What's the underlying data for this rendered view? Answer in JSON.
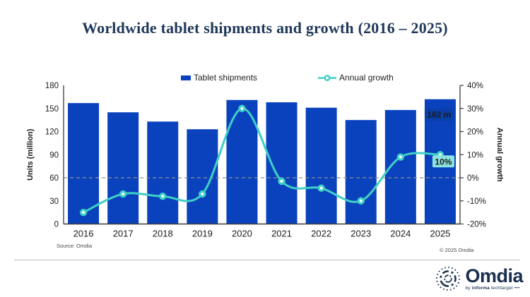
{
  "title": "Worldwide tablet shipments and growth (2016 – 2025)",
  "legend": [
    {
      "label": "Tablet shipments",
      "swatch": "blue-bar"
    },
    {
      "label": "Annual growth",
      "swatch": "teal-line-marker"
    }
  ],
  "chart_data": {
    "type": "bar+line combo",
    "categories": [
      "2016",
      "2017",
      "2018",
      "2019",
      "2020",
      "2021",
      "2022",
      "2023",
      "2024",
      "2025"
    ],
    "series": [
      {
        "name": "Tablet shipments",
        "type": "bar",
        "axis": "left",
        "unit": "million units",
        "values": [
          157,
          145,
          133,
          123,
          161,
          158,
          151,
          135,
          148,
          162
        ]
      },
      {
        "name": "Annual growth",
        "type": "line",
        "axis": "right",
        "unit": "percent",
        "values": [
          -15,
          -7,
          -8,
          -7,
          30,
          -1.5,
          -4.5,
          -10,
          9,
          10
        ]
      }
    ],
    "left_axis": {
      "label": "Units (million)",
      "min": 0,
      "max": 180,
      "ticks": [
        0,
        30,
        60,
        90,
        120,
        150,
        180
      ]
    },
    "right_axis": {
      "label": "Annual growth",
      "min": -20,
      "max": 40,
      "ticks": [
        -20,
        -10,
        0,
        10,
        20,
        30,
        40
      ],
      "tick_suffix": "%"
    },
    "reference_line": {
      "left_value": 60,
      "right_value": 0,
      "style": "dashed"
    },
    "annotations": [
      {
        "target": "2025-bar",
        "text": "162 m"
      },
      {
        "target": "2025-growth-point",
        "text": "10%"
      }
    ],
    "grid": "off",
    "legend_position": "top-center"
  },
  "colors": {
    "bar": "#0a42bd",
    "line": "#3ed0c5",
    "marker_center": "#ffffff",
    "bar_label_bg": "#0a3ea9",
    "bar_label_text": "#ffffff",
    "line_label_bg": "#8ce4de",
    "line_label_text": "#ffffff",
    "title": "#20395a",
    "axis": "#3a3a3a",
    "reference_line": "#8f8f8f",
    "logo_navy": "#1a2f4e"
  },
  "footer": {
    "source": "Source: Omdia",
    "copyright": "© 2025 Omdia"
  },
  "logo": {
    "name": "Omdia",
    "tagline_prefix": "by",
    "tagline_brand": "informa",
    "tagline_suffix": "techtarget •••"
  }
}
